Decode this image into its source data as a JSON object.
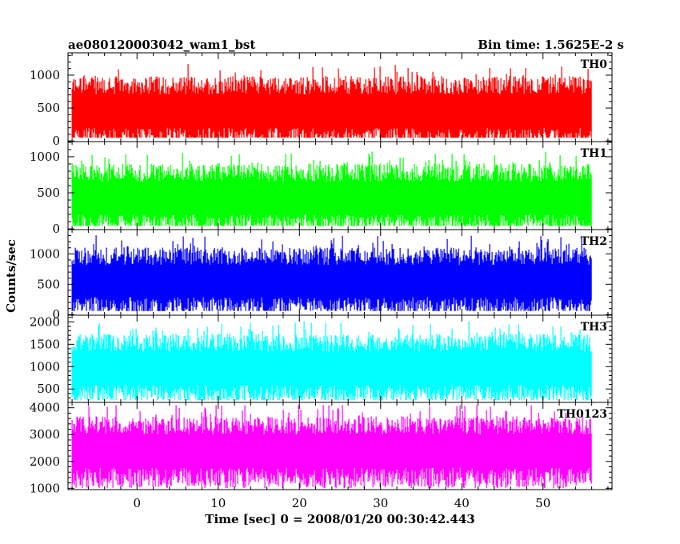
{
  "chart_data": {
    "type": "line",
    "title_left": "ae080120003042_wam1_bst",
    "title_right": "Bin time: 1.5625E-2 s",
    "xlabel": "Time [sec] 0 = 2008/01/20 00:30:42.443",
    "ylabel": "Counts/sec",
    "xlim": [
      -8.5,
      58.5
    ],
    "x_ticks": [
      0,
      10,
      20,
      30,
      40,
      50
    ],
    "x_tick_labels": [
      "0",
      "10",
      "20",
      "30",
      "40",
      "50"
    ],
    "data_x_range": [
      -8,
      56
    ],
    "panels": [
      {
        "name": "TH0",
        "color": "#ff0000",
        "ylim": [
          -10,
          1340
        ],
        "y_ticks": [
          0,
          500,
          1000
        ],
        "y_tick_labels": [
          "0",
          "500",
          "1000"
        ],
        "mean": 480,
        "min": 50,
        "max": 1320
      },
      {
        "name": "TH1",
        "color": "#00ff00",
        "ylim": [
          -10,
          1210
        ],
        "y_ticks": [
          0,
          500,
          1000
        ],
        "y_tick_labels": [
          "0",
          "500",
          "1000"
        ],
        "mean": 450,
        "min": 40,
        "max": 1180
      },
      {
        "name": "TH2",
        "color": "#0000ff",
        "ylim": [
          -10,
          1400
        ],
        "y_ticks": [
          0,
          500,
          1000
        ],
        "y_tick_labels": [
          "0",
          "500",
          "1000"
        ],
        "mean": 580,
        "min": 60,
        "max": 1380
      },
      {
        "name": "TH3",
        "color": "#00ffff",
        "ylim": [
          200,
          2150
        ],
        "y_ticks": [
          500,
          1000,
          1500,
          2000
        ],
        "y_tick_labels": [
          "500",
          "1000",
          "1500",
          "2000"
        ],
        "mean": 1000,
        "min": 250,
        "max": 2100
      },
      {
        "name": "TH0123",
        "color": "#ff00ff",
        "ylim": [
          950,
          4200
        ],
        "y_ticks": [
          1000,
          2000,
          3000,
          4000
        ],
        "y_tick_labels": [
          "1000",
          "2000",
          "3000",
          "4000"
        ],
        "mean": 2450,
        "min": 1000,
        "max": 4100
      }
    ]
  }
}
